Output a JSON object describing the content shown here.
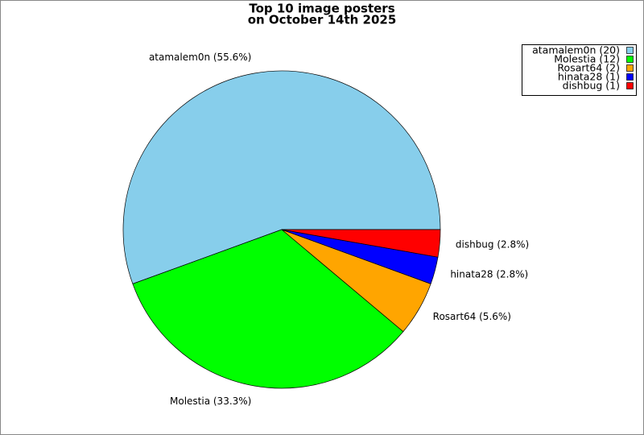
{
  "chart_data": {
    "type": "pie",
    "title": [
      "Top 10 image posters",
      "on October 14th 2025"
    ],
    "categories": [
      "atamalem0n",
      "Molestia",
      "Rosart64",
      "hinata28",
      "dishbug"
    ],
    "values": [
      20,
      12,
      2,
      1,
      1
    ],
    "colors": [
      "#87ceeb",
      "#00ff00",
      "#ffa500",
      "#0000ff",
      "#ff0000"
    ],
    "slice_labels": [
      "atamalem0n (55.6%)",
      "Molestia (33.3%)",
      "Rosart64 (5.6%)",
      "hinata28 (2.8%)",
      "dishbug (2.8%)"
    ],
    "legend_labels": [
      "atamalem0n (20)",
      "Molestia (12)",
      "Rosart64 (2)",
      "hinata28 (1)",
      "dishbug (1)"
    ],
    "legend": "upper right"
  }
}
